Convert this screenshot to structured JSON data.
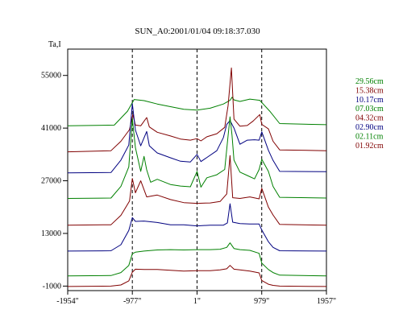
{
  "chart_data": {
    "type": "line",
    "title": "SUN_A0:2001/01/04 09:18:37.030",
    "ylabel": "Ta,I",
    "xlabel": "",
    "xlim": [
      -1954,
      1957
    ],
    "ylim": [
      -2200,
      62000
    ],
    "x_ticks": [
      {
        "value": -1954,
        "label": "-1954\""
      },
      {
        "value": -977,
        "label": "-977\""
      },
      {
        "value": 1,
        "label": "1\""
      },
      {
        "value": 979,
        "label": "979\""
      },
      {
        "value": 1957,
        "label": "1957\""
      }
    ],
    "y_ticks": [
      {
        "value": -1000,
        "label": "-1000"
      },
      {
        "value": 13000,
        "label": "13000"
      },
      {
        "value": 27000,
        "label": "27000"
      },
      {
        "value": 41000,
        "label": "41000"
      },
      {
        "value": 55000,
        "label": "55000"
      }
    ],
    "vlines": [
      -977,
      1,
      979
    ],
    "grid": false,
    "legend_position": "right",
    "series": [
      {
        "name": "29.56cm",
        "color": "#008000",
        "points": [
          [
            -1954,
            41600
          ],
          [
            -1250,
            41800
          ],
          [
            -1050,
            45500
          ],
          [
            -950,
            48600
          ],
          [
            -800,
            48300
          ],
          [
            -600,
            47400
          ],
          [
            -400,
            46700
          ],
          [
            -200,
            46000
          ],
          [
            0,
            45800
          ],
          [
            200,
            46300
          ],
          [
            400,
            47400
          ],
          [
            500,
            48400
          ],
          [
            530,
            49200
          ],
          [
            560,
            48500
          ],
          [
            650,
            48100
          ],
          [
            800,
            48700
          ],
          [
            950,
            48400
          ],
          [
            1100,
            45500
          ],
          [
            1250,
            42200
          ],
          [
            1957,
            41900
          ]
        ]
      },
      {
        "name": "15.38cm",
        "color": "#800000",
        "points": [
          [
            -1954,
            34700
          ],
          [
            -1300,
            35000
          ],
          [
            -1150,
            37500
          ],
          [
            -1020,
            40600
          ],
          [
            -970,
            44600
          ],
          [
            -930,
            41800
          ],
          [
            -850,
            41600
          ],
          [
            -760,
            43800
          ],
          [
            -720,
            41300
          ],
          [
            -600,
            39900
          ],
          [
            -400,
            38900
          ],
          [
            -250,
            38100
          ],
          [
            -100,
            37800
          ],
          [
            0,
            38200
          ],
          [
            60,
            37600
          ],
          [
            150,
            38700
          ],
          [
            300,
            39500
          ],
          [
            420,
            41200
          ],
          [
            470,
            47000
          ],
          [
            520,
            57000
          ],
          [
            560,
            43400
          ],
          [
            650,
            41500
          ],
          [
            760,
            41700
          ],
          [
            850,
            42900
          ],
          [
            950,
            44600
          ],
          [
            980,
            42000
          ],
          [
            1080,
            40800
          ],
          [
            1150,
            37500
          ],
          [
            1250,
            35200
          ],
          [
            1957,
            35000
          ]
        ]
      },
      {
        "name": "10.17cm",
        "color": "#000080",
        "points": [
          [
            -1954,
            29100
          ],
          [
            -1300,
            29200
          ],
          [
            -1150,
            32500
          ],
          [
            -1030,
            36500
          ],
          [
            -977,
            47500
          ],
          [
            -930,
            40500
          ],
          [
            -850,
            36300
          ],
          [
            -760,
            40100
          ],
          [
            -720,
            36300
          ],
          [
            -600,
            34400
          ],
          [
            -400,
            33100
          ],
          [
            -250,
            32200
          ],
          [
            -100,
            32000
          ],
          [
            1,
            34000
          ],
          [
            60,
            32100
          ],
          [
            150,
            33200
          ],
          [
            300,
            35000
          ],
          [
            400,
            38500
          ],
          [
            450,
            42000
          ],
          [
            500,
            43000
          ],
          [
            560,
            41000
          ],
          [
            650,
            36700
          ],
          [
            760,
            37800
          ],
          [
            870,
            37900
          ],
          [
            940,
            37800
          ],
          [
            980,
            40000
          ],
          [
            1080,
            35100
          ],
          [
            1150,
            32400
          ],
          [
            1250,
            29500
          ],
          [
            1957,
            29400
          ]
        ]
      },
      {
        "name": "07.03cm",
        "color": "#008000",
        "points": [
          [
            -1954,
            22300
          ],
          [
            -1300,
            22400
          ],
          [
            -1150,
            25500
          ],
          [
            -1030,
            30700
          ],
          [
            -977,
            43500
          ],
          [
            -930,
            35800
          ],
          [
            -850,
            29500
          ],
          [
            -800,
            33500
          ],
          [
            -760,
            29900
          ],
          [
            -700,
            26600
          ],
          [
            -600,
            27400
          ],
          [
            -400,
            26000
          ],
          [
            -250,
            25600
          ],
          [
            -100,
            25400
          ],
          [
            1,
            29500
          ],
          [
            60,
            25300
          ],
          [
            150,
            27800
          ],
          [
            300,
            28600
          ],
          [
            420,
            30000
          ],
          [
            470,
            39000
          ],
          [
            500,
            44000
          ],
          [
            530,
            39000
          ],
          [
            560,
            32500
          ],
          [
            650,
            29300
          ],
          [
            760,
            28400
          ],
          [
            870,
            27500
          ],
          [
            940,
            30000
          ],
          [
            980,
            32700
          ],
          [
            1080,
            29500
          ],
          [
            1150,
            25500
          ],
          [
            1250,
            22600
          ],
          [
            1957,
            22400
          ]
        ]
      },
      {
        "name": "04.32cm",
        "color": "#800000",
        "points": [
          [
            -1954,
            15200
          ],
          [
            -1300,
            15300
          ],
          [
            -1150,
            17800
          ],
          [
            -1020,
            21600
          ],
          [
            -977,
            27600
          ],
          [
            -930,
            23800
          ],
          [
            -850,
            27000
          ],
          [
            -760,
            22700
          ],
          [
            -600,
            23200
          ],
          [
            -400,
            22000
          ],
          [
            -200,
            21200
          ],
          [
            0,
            21000
          ],
          [
            200,
            21100
          ],
          [
            350,
            21500
          ],
          [
            450,
            23500
          ],
          [
            500,
            33700
          ],
          [
            540,
            22500
          ],
          [
            650,
            22300
          ],
          [
            800,
            22700
          ],
          [
            940,
            22200
          ],
          [
            980,
            25000
          ],
          [
            1080,
            20000
          ],
          [
            1150,
            17900
          ],
          [
            1250,
            15400
          ],
          [
            1957,
            15200
          ]
        ]
      },
      {
        "name": "02.90cm",
        "color": "#000080",
        "points": [
          [
            -1954,
            8300
          ],
          [
            -1300,
            8400
          ],
          [
            -1150,
            10000
          ],
          [
            -1030,
            13800
          ],
          [
            -977,
            17200
          ],
          [
            -930,
            16200
          ],
          [
            -800,
            16300
          ],
          [
            -600,
            15900
          ],
          [
            -400,
            15300
          ],
          [
            -200,
            15300
          ],
          [
            0,
            15000
          ],
          [
            200,
            15200
          ],
          [
            400,
            15200
          ],
          [
            460,
            15800
          ],
          [
            500,
            20900
          ],
          [
            540,
            16000
          ],
          [
            650,
            15600
          ],
          [
            800,
            15500
          ],
          [
            940,
            15500
          ],
          [
            980,
            13900
          ],
          [
            1080,
            10800
          ],
          [
            1150,
            9300
          ],
          [
            1250,
            8400
          ],
          [
            1957,
            8300
          ]
        ]
      },
      {
        "name": "02.11cm",
        "color": "#008000",
        "points": [
          [
            -1954,
            1700
          ],
          [
            -1300,
            1800
          ],
          [
            -1150,
            2600
          ],
          [
            -1030,
            4500
          ],
          [
            -977,
            7600
          ],
          [
            -930,
            8000
          ],
          [
            -800,
            8300
          ],
          [
            -600,
            8600
          ],
          [
            -400,
            8700
          ],
          [
            -200,
            8600
          ],
          [
            0,
            8700
          ],
          [
            200,
            8700
          ],
          [
            350,
            8800
          ],
          [
            450,
            9300
          ],
          [
            500,
            10500
          ],
          [
            560,
            9000
          ],
          [
            650,
            8700
          ],
          [
            800,
            8500
          ],
          [
            940,
            7700
          ],
          [
            980,
            5100
          ],
          [
            1080,
            3400
          ],
          [
            1150,
            2600
          ],
          [
            1250,
            1900
          ],
          [
            1957,
            1700
          ]
        ]
      },
      {
        "name": "01.92cm",
        "color": "#800000",
        "points": [
          [
            -1954,
            -1100
          ],
          [
            -1300,
            -1000
          ],
          [
            -1150,
            -700
          ],
          [
            -1030,
            400
          ],
          [
            -977,
            2700
          ],
          [
            -930,
            3500
          ],
          [
            -800,
            3400
          ],
          [
            -600,
            3400
          ],
          [
            -400,
            3200
          ],
          [
            -200,
            3000
          ],
          [
            0,
            3100
          ],
          [
            200,
            3100
          ],
          [
            350,
            3300
          ],
          [
            450,
            3600
          ],
          [
            500,
            4500
          ],
          [
            560,
            3500
          ],
          [
            650,
            3300
          ],
          [
            800,
            3000
          ],
          [
            940,
            2500
          ],
          [
            980,
            500
          ],
          [
            1080,
            -500
          ],
          [
            1150,
            -800
          ],
          [
            1250,
            -1000
          ],
          [
            1957,
            -1100
          ]
        ]
      }
    ]
  }
}
